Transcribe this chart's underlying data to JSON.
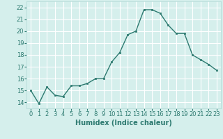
{
  "x": [
    0,
    1,
    2,
    3,
    4,
    5,
    6,
    7,
    8,
    9,
    10,
    11,
    12,
    13,
    14,
    15,
    16,
    17,
    18,
    19,
    20,
    21,
    22,
    23
  ],
  "y": [
    15.0,
    13.9,
    15.3,
    14.6,
    14.5,
    15.4,
    15.4,
    15.6,
    16.0,
    16.0,
    17.4,
    18.2,
    19.7,
    20.0,
    21.8,
    21.8,
    21.5,
    20.5,
    19.8,
    19.8,
    18.0,
    17.6,
    17.2,
    16.7
  ],
  "xlim": [
    -0.5,
    23.5
  ],
  "ylim": [
    13.5,
    22.5
  ],
  "yticks": [
    14,
    15,
    16,
    17,
    18,
    19,
    20,
    21,
    22
  ],
  "xticks": [
    0,
    1,
    2,
    3,
    4,
    5,
    6,
    7,
    8,
    9,
    10,
    11,
    12,
    13,
    14,
    15,
    16,
    17,
    18,
    19,
    20,
    21,
    22,
    23
  ],
  "xlabel": "Humidex (Indice chaleur)",
  "line_color": "#2d7a70",
  "marker_color": "#2d7a70",
  "bg_color": "#d5efec",
  "grid_color": "#b0d8d4",
  "tick_color": "#2d7a70",
  "xlabel_fontsize": 7,
  "tick_fontsize": 6,
  "line_width": 1.0,
  "marker_size": 2
}
